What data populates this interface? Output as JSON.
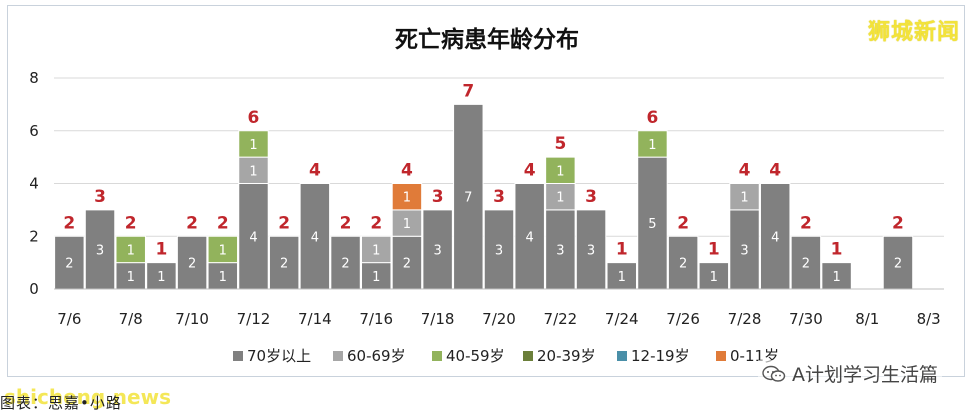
{
  "chart_data": {
    "type": "bar",
    "stacked": true,
    "title": "死亡病患年龄分布",
    "categories": [
      "7/6",
      "7/7",
      "7/8",
      "7/9",
      "7/10",
      "7/11",
      "7/12",
      "7/13",
      "7/14",
      "7/15",
      "7/16",
      "7/17",
      "7/18",
      "7/19",
      "7/20",
      "7/21",
      "7/22",
      "7/23",
      "7/24",
      "7/25",
      "7/26",
      "7/27",
      "7/28",
      "7/29",
      "7/30",
      "7/31",
      "8/1",
      "8/2",
      "8/3"
    ],
    "x_tick_labels": [
      "7/6",
      "",
      "7/8",
      "",
      "7/10",
      "",
      "7/12",
      "",
      "7/14",
      "",
      "7/16",
      "",
      "7/18",
      "",
      "7/20",
      "",
      "7/22",
      "",
      "7/24",
      "",
      "7/26",
      "",
      "7/28",
      "",
      "7/30",
      "",
      "8/1",
      "",
      "8/3"
    ],
    "series": [
      {
        "name": "70岁以上",
        "color": "#808080",
        "values": [
          2,
          3,
          1,
          1,
          2,
          1,
          4,
          2,
          4,
          2,
          1,
          2,
          3,
          7,
          3,
          4,
          3,
          3,
          1,
          5,
          2,
          1,
          3,
          4,
          2,
          1,
          0,
          2,
          0
        ]
      },
      {
        "name": "60-69岁",
        "color": "#a6a6a6",
        "values": [
          0,
          0,
          0,
          0,
          0,
          0,
          1,
          0,
          0,
          0,
          1,
          1,
          0,
          0,
          0,
          0,
          1,
          0,
          0,
          0,
          0,
          0,
          1,
          0,
          0,
          0,
          0,
          0,
          0
        ]
      },
      {
        "name": "40-59岁",
        "color": "#92b35c",
        "values": [
          0,
          0,
          1,
          0,
          0,
          1,
          1,
          0,
          0,
          0,
          0,
          0,
          0,
          0,
          0,
          0,
          1,
          0,
          0,
          1,
          0,
          0,
          0,
          0,
          0,
          0,
          0,
          0,
          0
        ]
      },
      {
        "name": "20-39岁",
        "color": "#6b7f3a",
        "values": [
          0,
          0,
          0,
          0,
          0,
          0,
          0,
          0,
          0,
          0,
          0,
          0,
          0,
          0,
          0,
          0,
          0,
          0,
          0,
          0,
          0,
          0,
          0,
          0,
          0,
          0,
          0,
          0,
          0
        ]
      },
      {
        "name": "12-19岁",
        "color": "#4a8fa8",
        "values": [
          0,
          0,
          0,
          0,
          0,
          0,
          0,
          0,
          0,
          0,
          0,
          0,
          0,
          0,
          0,
          0,
          0,
          0,
          0,
          0,
          0,
          0,
          0,
          0,
          0,
          0,
          0,
          0,
          0
        ]
      },
      {
        "name": "0-11岁",
        "color": "#e07b39",
        "values": [
          0,
          0,
          0,
          0,
          0,
          0,
          0,
          0,
          0,
          0,
          0,
          1,
          0,
          0,
          0,
          0,
          0,
          0,
          0,
          0,
          0,
          0,
          0,
          0,
          0,
          0,
          0,
          0,
          0
        ]
      }
    ],
    "totals": [
      2,
      3,
      2,
      1,
      2,
      2,
      6,
      2,
      4,
      2,
      2,
      4,
      3,
      7,
      3,
      4,
      5,
      3,
      1,
      6,
      2,
      1,
      4,
      4,
      2,
      1,
      0,
      2,
      0
    ],
    "y_ticks": [
      0,
      2,
      4,
      6,
      8
    ],
    "ylim": [
      0,
      8
    ],
    "grid": true,
    "legend": "bottom",
    "total_label_color": "#c0262c"
  },
  "watermarks": {
    "top": "狮城新闻",
    "bottom": "shicheng.news"
  },
  "caption": "图表：思嘉•小路",
  "account": "A计划学习生活篇",
  "account_icon": "wechat-icon"
}
